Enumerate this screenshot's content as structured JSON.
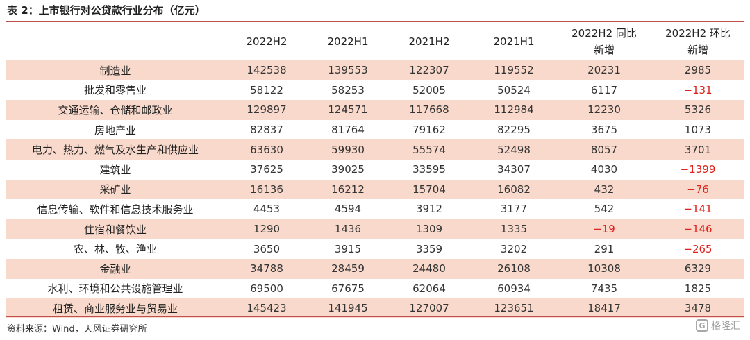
{
  "title": {
    "label": "表 2：",
    "text": "上市银行对公贷款行业分布（亿元）"
  },
  "table": {
    "headers": [
      "",
      "2022H2",
      "2022H1",
      "2021H2",
      "2021H1",
      "2022H2 同比\n新增",
      "2022H2 环比\n新增"
    ],
    "rows": [
      {
        "name": "制造业",
        "values": [
          "142538",
          "139553",
          "122307",
          "119552",
          "20231",
          "2985"
        ]
      },
      {
        "name": "批发和零售业",
        "values": [
          "58122",
          "58253",
          "52005",
          "50524",
          "6117",
          "−131"
        ]
      },
      {
        "name": "交通运输、仓储和邮政业",
        "values": [
          "129897",
          "124571",
          "117668",
          "112984",
          "12230",
          "5326"
        ]
      },
      {
        "name": "房地产业",
        "values": [
          "82837",
          "81764",
          "79162",
          "82295",
          "3675",
          "1073"
        ]
      },
      {
        "name": "电力、热力、燃气及水生产和供应业",
        "values": [
          "63630",
          "59930",
          "55574",
          "52498",
          "8057",
          "3701"
        ]
      },
      {
        "name": "建筑业",
        "values": [
          "37625",
          "39025",
          "33595",
          "34307",
          "4030",
          "−1399"
        ]
      },
      {
        "name": "采矿业",
        "values": [
          "16136",
          "16212",
          "15704",
          "16082",
          "432",
          "−76"
        ]
      },
      {
        "name": "信息传输、软件和信息技术服务业",
        "values": [
          "4453",
          "4594",
          "3912",
          "3177",
          "542",
          "−141"
        ]
      },
      {
        "name": "住宿和餐饮业",
        "values": [
          "1290",
          "1436",
          "1309",
          "1335",
          "−19",
          "−146"
        ]
      },
      {
        "name": "农、林、牧、渔业",
        "values": [
          "3650",
          "3915",
          "3359",
          "3202",
          "291",
          "−265"
        ]
      },
      {
        "name": "金融业",
        "values": [
          "34788",
          "28459",
          "24480",
          "26108",
          "10308",
          "6329"
        ]
      },
      {
        "name": "水利、环境和公共设施管理业",
        "values": [
          "69500",
          "67675",
          "62064",
          "60934",
          "7435",
          "1825"
        ]
      },
      {
        "name": "租赁、商业服务业与贸易业",
        "values": [
          "145423",
          "141945",
          "127007",
          "123651",
          "18417",
          "3478"
        ]
      }
    ]
  },
  "source": "资料来源：Wind，天风证券研究所",
  "logo": {
    "mark": "G",
    "text": "格隆汇"
  },
  "colors": {
    "accent": "#c0504d",
    "row_shade": "#f8d9cb",
    "negative": "#e0201b"
  }
}
